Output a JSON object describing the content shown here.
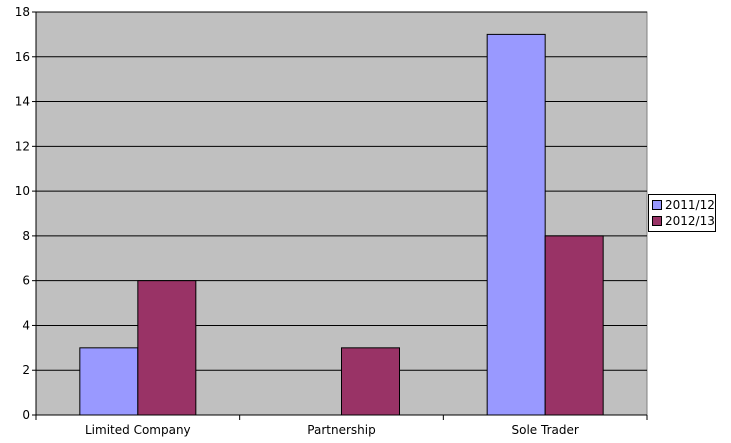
{
  "chart_data": {
    "type": "bar",
    "title": "",
    "xlabel": "",
    "ylabel": "",
    "categories": [
      "Limited Company",
      "Partnership",
      "Sole Trader"
    ],
    "series": [
      {
        "name": "2011/12",
        "values": [
          3,
          0,
          17
        ],
        "color": "#9999ff"
      },
      {
        "name": "2012/13",
        "values": [
          6,
          3,
          8
        ],
        "color": "#993366"
      }
    ],
    "ylim": [
      0,
      18
    ],
    "ytick_step": 2,
    "yticks": [
      "0",
      "2",
      "4",
      "6",
      "8",
      "10",
      "12",
      "14",
      "16",
      "18"
    ],
    "grid": true,
    "plot_background": "#c0c0c0",
    "legend_position": "right"
  }
}
